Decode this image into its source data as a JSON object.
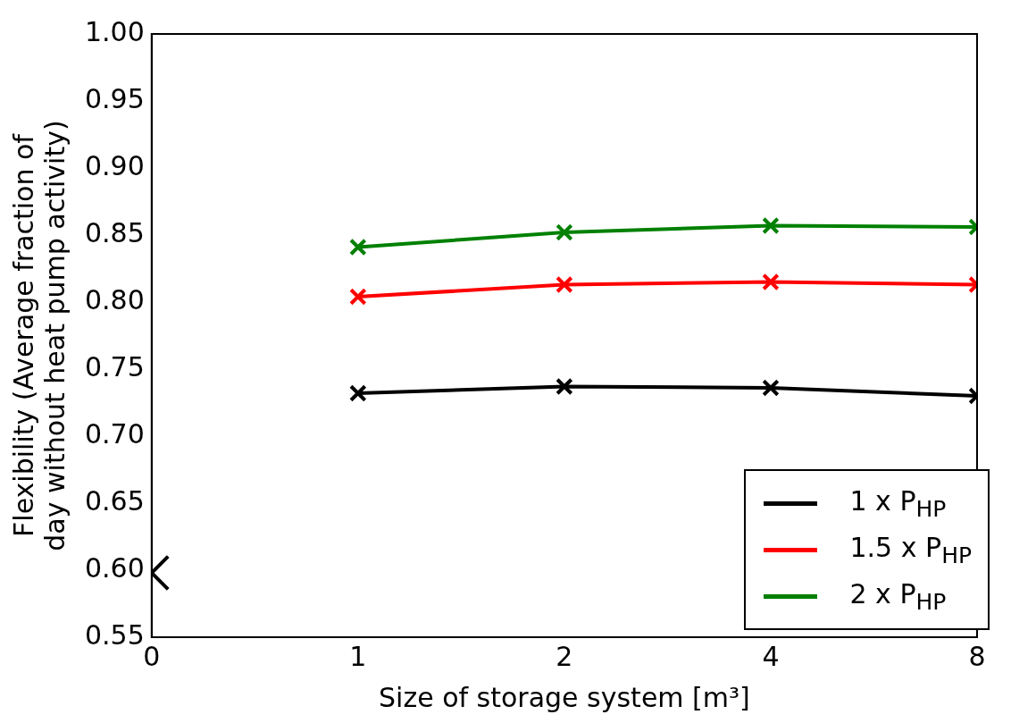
{
  "chart_data": {
    "type": "line",
    "xlabel": "Size of storage system [m³]",
    "ylabel": "Flexibility (Average fraction of\nday without heat pump activity)",
    "categories": [
      "0",
      "1",
      "2",
      "4",
      "8"
    ],
    "ylim": [
      0.55,
      1.0
    ],
    "yticks": [
      {
        "value": 0.55,
        "label": "0.55"
      },
      {
        "value": 0.6,
        "label": "0.60"
      },
      {
        "value": 0.65,
        "label": "0.65"
      },
      {
        "value": 0.7,
        "label": "0.70"
      },
      {
        "value": 0.75,
        "label": "0.75"
      },
      {
        "value": 0.8,
        "label": "0.80"
      },
      {
        "value": 0.85,
        "label": "0.85"
      },
      {
        "value": 0.9,
        "label": "0.90"
      },
      {
        "value": 0.95,
        "label": "0.95"
      },
      {
        "value": 1.0,
        "label": "1.00"
      }
    ],
    "grid": false,
    "legend": "bottom right",
    "marker": "cross",
    "line_style": "solid",
    "series": [
      {
        "name": "1 x P$_{HP}$",
        "color": "#000000",
        "values": [
          null,
          0.732,
          0.737,
          0.736,
          0.73
        ]
      },
      {
        "name": "1.5 x P$_{HP}$",
        "color": "#ff0000",
        "values": [
          null,
          0.804,
          0.813,
          0.815,
          0.813
        ]
      },
      {
        "name": "2 x P$_{HP}$",
        "color": "#008000",
        "values": [
          null,
          0.841,
          0.852,
          0.857,
          0.856
        ]
      },
      {
        "type": "scatter",
        "color": "#000000",
        "values": [
          0.598,
          null,
          null,
          null,
          null
        ]
      }
    ]
  }
}
